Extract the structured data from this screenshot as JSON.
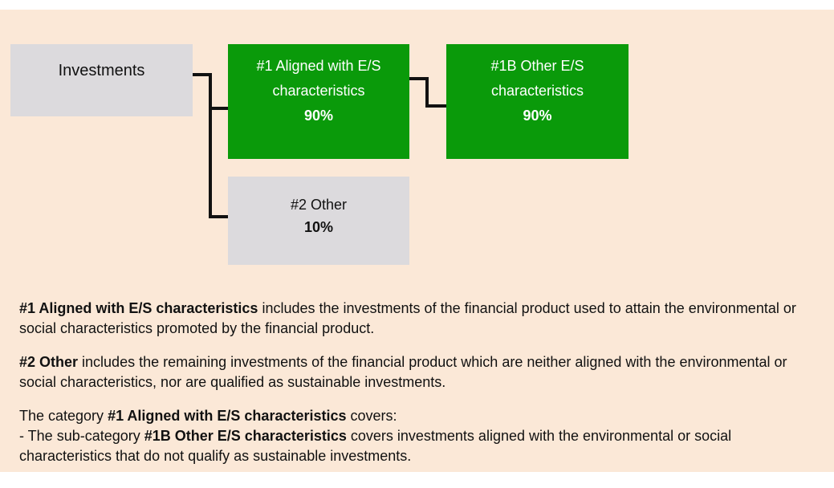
{
  "nodes": [
    {
      "label": "Investments"
    },
    {
      "label": "#1 Aligned with E/S characteristics",
      "value": "90%"
    },
    {
      "label": "#1B Other E/S characteristics",
      "value": "90%"
    },
    {
      "label": "#2 Other",
      "value": "10%"
    }
  ],
  "notes": [
    {
      "lines": [
        [
          {
            "text": "#1 Aligned with E/S characteristics",
            "bold": true
          },
          {
            "text": " includes the investments of the financial product used to attain the environmental or social characteristics promoted by the financial product."
          }
        ]
      ]
    },
    {
      "lines": [
        [
          {
            "text": "#2 Other",
            "bold": true
          },
          {
            "text": " includes the remaining investments of the financial product which are neither aligned with the environmental or social characteristics, nor are qualified as sustainable investments."
          }
        ]
      ]
    },
    {
      "lines": [
        [
          {
            "text": "The category "
          },
          {
            "text": "#1 Aligned with E/S characteristics",
            "bold": true
          },
          {
            "text": " covers:"
          }
        ],
        [
          {
            "text": "- The sub-category "
          },
          {
            "text": "#1B Other E/S characteristics",
            "bold": true
          },
          {
            "text": " covers investments aligned with the environmental or social characteristics that do not qualify as sustainable investments."
          }
        ]
      ]
    }
  ]
}
